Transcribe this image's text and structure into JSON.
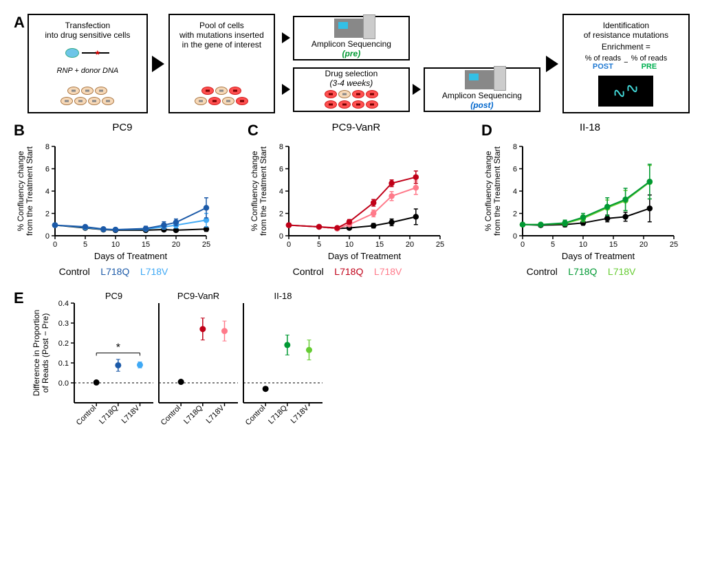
{
  "panelA": {
    "label": "A",
    "box1": {
      "line1": "Transfection",
      "line2": "into drug sensitive cells",
      "rnp_label": "RNP + donor DNA"
    },
    "box2": {
      "line1": "Pool of cells",
      "line2": "with mutations inserted",
      "line3": "in the gene of interest"
    },
    "seq_pre": {
      "title": "Amplicon Sequencing",
      "phase": "(pre)"
    },
    "drug_box": {
      "line1": "Drug selection",
      "line2": "(3-4 weeks)"
    },
    "seq_post": {
      "title": "Amplicon Sequencing",
      "phase": "(post)"
    },
    "box_last": {
      "line1": "Identification",
      "line2": "of resistance mutations",
      "enrichment_label": "Enrichment =",
      "post": "% of reads",
      "post_label": "POST",
      "minus": "−",
      "pre": "% of reads",
      "pre_label": "PRE"
    }
  },
  "chartsBCD": {
    "xlabel": "Days of Treatment",
    "ylabel": "% Confluency change\nfrom the Treatment Start",
    "xticks": [
      0,
      5,
      10,
      15,
      20,
      25
    ],
    "yticks": [
      0,
      2,
      4,
      6,
      8
    ],
    "xlim": [
      0,
      25
    ],
    "ylim": [
      0,
      8
    ],
    "B": {
      "label": "B",
      "title": "PC9",
      "legend": {
        "control": "Control",
        "q": "L718Q",
        "v": "L718V"
      },
      "colors": {
        "control": "#000000",
        "q": "#1c5aa8",
        "v": "#3fa9f5"
      },
      "x": [
        0,
        5,
        8,
        10,
        15,
        18,
        20,
        25
      ],
      "series": {
        "control": {
          "y": [
            0.95,
            0.7,
            0.55,
            0.5,
            0.5,
            0.55,
            0.5,
            0.6
          ],
          "err": [
            0.1,
            0.1,
            0.1,
            0.1,
            0.15,
            0.1,
            0.15,
            0.2
          ]
        },
        "q": {
          "y": [
            0.95,
            0.8,
            0.6,
            0.55,
            0.65,
            0.95,
            1.2,
            2.5
          ],
          "err": [
            0.1,
            0.1,
            0.1,
            0.1,
            0.2,
            0.3,
            0.3,
            0.9
          ]
        },
        "v": {
          "y": [
            0.95,
            0.75,
            0.58,
            0.55,
            0.6,
            0.8,
            0.95,
            1.4
          ],
          "err": [
            0.1,
            0.1,
            0.1,
            0.1,
            0.15,
            0.2,
            0.25,
            0.6
          ]
        }
      }
    },
    "C": {
      "label": "C",
      "title": "PC9-VanR",
      "legend": {
        "control": "Control",
        "q": "L718Q",
        "v": "L718V"
      },
      "colors": {
        "control": "#000000",
        "q": "#c00018",
        "v": "#ff7a8a"
      },
      "x": [
        0,
        5,
        8,
        10,
        14,
        17,
        21
      ],
      "series": {
        "control": {
          "y": [
            0.95,
            0.8,
            0.65,
            0.7,
            0.9,
            1.2,
            1.7
          ],
          "err": [
            0.15,
            0.1,
            0.1,
            0.1,
            0.2,
            0.3,
            0.7
          ]
        },
        "q": {
          "y": [
            0.95,
            0.8,
            0.7,
            1.25,
            2.95,
            4.7,
            5.25
          ],
          "err": [
            0.1,
            0.1,
            0.1,
            0.2,
            0.3,
            0.3,
            0.55
          ]
        },
        "v": {
          "y": [
            0.95,
            0.8,
            0.65,
            1.0,
            2.0,
            3.55,
            4.3
          ],
          "err": [
            0.1,
            0.1,
            0.1,
            0.15,
            0.3,
            0.4,
            0.6
          ]
        }
      }
    },
    "D": {
      "label": "D",
      "title": "II-18",
      "legend": {
        "control": "Control",
        "q": "L718Q",
        "v": "L718V"
      },
      "colors": {
        "control": "#000000",
        "q": "#009933",
        "v": "#66cc33"
      },
      "x": [
        0,
        3,
        7,
        10,
        14,
        17,
        21
      ],
      "series": {
        "control": {
          "y": [
            1.0,
            0.95,
            1.0,
            1.15,
            1.55,
            1.7,
            2.45
          ],
          "err": [
            0.15,
            0.15,
            0.2,
            0.2,
            0.3,
            0.4,
            1.2
          ]
        },
        "q": {
          "y": [
            1.0,
            1.0,
            1.15,
            1.65,
            2.6,
            3.25,
            4.85
          ],
          "err": [
            0.1,
            0.15,
            0.25,
            0.35,
            0.8,
            1.0,
            1.55
          ]
        },
        "v": {
          "y": [
            1.0,
            1.0,
            1.1,
            1.55,
            2.5,
            3.15,
            4.8
          ],
          "err": [
            0.1,
            0.15,
            0.2,
            0.3,
            0.7,
            0.9,
            1.5
          ]
        }
      }
    }
  },
  "panelE": {
    "label": "E",
    "ylabel": "Difference in Proportion\nof Reads (Post − Pre)",
    "ylim": [
      -0.1,
      0.4
    ],
    "yticks": [
      0.0,
      0.1,
      0.2,
      0.3,
      0.4
    ],
    "categories": [
      "Control",
      "L718Q",
      "L718V"
    ],
    "subplots": [
      {
        "title": "PC9",
        "colors": [
          "#000000",
          "#1c5aa8",
          "#3fa9f5"
        ],
        "y": [
          0.002,
          0.088,
          0.09
        ],
        "err": [
          0.003,
          0.03,
          0.015
        ],
        "sig": "*"
      },
      {
        "title": "PC9-VanR",
        "colors": [
          "#000000",
          "#c00018",
          "#ff7a8a"
        ],
        "y": [
          0.005,
          0.27,
          0.26
        ],
        "err": [
          0.003,
          0.055,
          0.05
        ],
        "sig": null
      },
      {
        "title": "II-18",
        "colors": [
          "#000000",
          "#009933",
          "#66cc33"
        ],
        "y": [
          -0.03,
          0.19,
          0.165
        ],
        "err": [
          0.003,
          0.05,
          0.05
        ],
        "sig": null
      }
    ]
  }
}
